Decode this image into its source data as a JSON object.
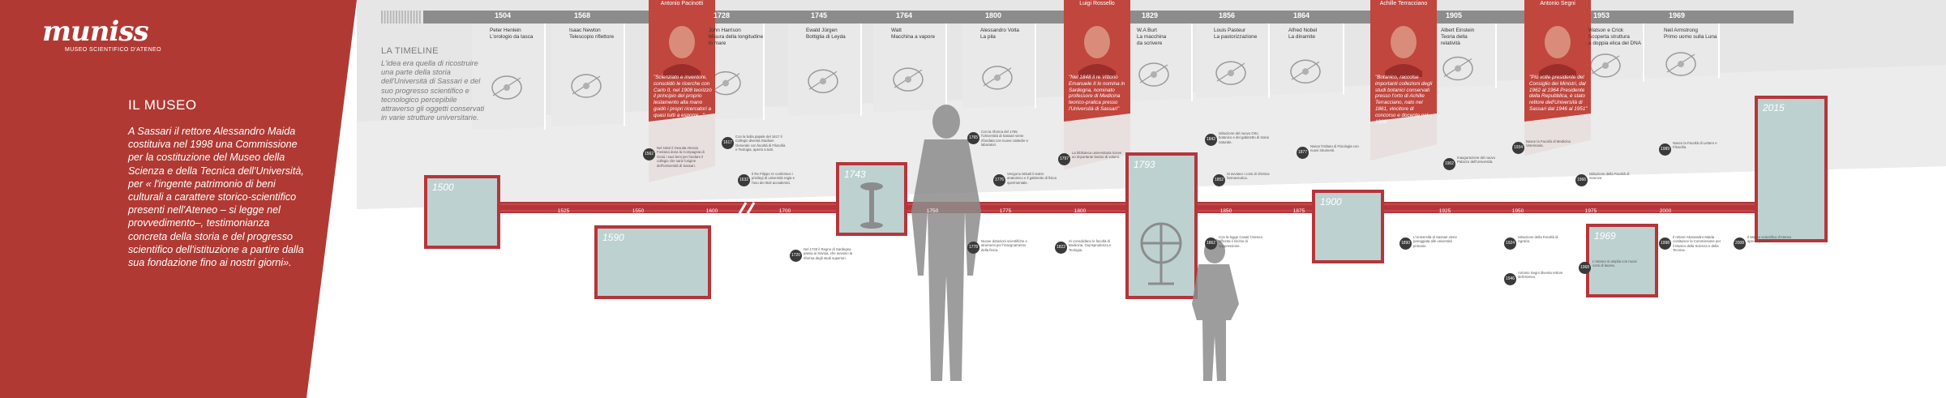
{
  "colors": {
    "brand_red": "#b03a33",
    "timeline_red": "#b6353a",
    "exhibit_fill": "#bdd1d0",
    "grey_panel": "#e4e4e4",
    "header_bar": "#8c8c8c"
  },
  "brand": {
    "name": "muniss",
    "subtitle": "MUSEO SCIENTIFICO D'ATENEO"
  },
  "museo": {
    "title": "IL MUSEO",
    "text": "A Sassari il rettore Alessandro Maida costituiva nel 1998 una Commissione per la costituzione del Museo della Scienza e della Tecnica dell'Università, per « l'ingente patrimonio di beni culturali a carattere storico-scientifico presenti nell'Ateneo – si legge nel provvedimento–, testimonianza concreta della storia e del progresso scientifico dell'istituzione a partire dalla sua fondazione fino ai nostri giorni»."
  },
  "timeline_intro": {
    "title": "LA TIMELINE",
    "text": "L'idea era quella di ricostruire una parte della storia dell'Università di Sassari e del suo progresso scientifico e tecnologico percepibile attraverso gli oggetti conservati in varie strutture universitarie."
  },
  "inventions": [
    {
      "year": "1504",
      "caption": "Peter Henlein\nL'orologio da tasca",
      "icon": "pocket-watch-icon"
    },
    {
      "year": "1568",
      "caption": "Isaac Newton\nTelescopio riflettore",
      "icon": "telescope-icon"
    },
    {
      "year": "1728",
      "caption": "John Harrison\nMisura della longitudine\nin mare",
      "icon": "marine-chronometer-icon"
    },
    {
      "year": "1745",
      "caption": "Ewald Jürgen\nBottiglia di Leyda",
      "icon": "leyden-jar-icon"
    },
    {
      "year": "1764",
      "caption": "Watt\nMacchina a vapore",
      "icon": "steam-engine-icon"
    },
    {
      "year": "1800",
      "caption": "Alessandro Volta\nLa pila",
      "icon": "voltaic-pile-icon"
    },
    {
      "year": "1829",
      "caption": "W.A Burt\nLa macchina\nda scrivere",
      "icon": "typewriter-icon"
    },
    {
      "year": "1856",
      "caption": "Louis Pasteur\nLa pastorizzazione",
      "icon": "petri-dish-icon"
    },
    {
      "year": "1864",
      "caption": "Alfred Nobel\nLa dinamite",
      "icon": "dynamite-icon"
    },
    {
      "year": "1905",
      "caption": "Albert Einstein\nTeoria della\nrelatività",
      "icon": "formula-icon"
    },
    {
      "year": "1953",
      "caption": "Watson e Crick\nScoperta struttura\na doppia elica del DNA",
      "icon": "dna-icon"
    },
    {
      "year": "1969",
      "caption": "Neil Armstrong\nPrimo uomo sulla Luna",
      "icon": "astronaut-icon"
    }
  ],
  "portraits": [
    {
      "name": "Antonio Pacinotti",
      "quote": "\"Scienziato e inventore, consolidò le ricerche con Carlo II, nel 1908 teorizzò il principio del proprio testamento alla mano guidò i propri ricercatori a quasi tutti a esporre...\""
    },
    {
      "name": "Luigi Rossello",
      "quote": "\"Nel 1848 il re Vittorio Emanuele II lo nomina in Sardegna, nominato professore di Medicina teorico-pratica presso l'Università di Sassari\""
    },
    {
      "name": "Achille Terracciano",
      "quote": "\"Botanico, raccolse importanti collezioni degli studi botanici conservati presso l'orto di Achille Terracciano, nato nel 1861, vincitore di concorso e docente nel 1908\""
    },
    {
      "name": "Antonio Segni",
      "quote": "\"Più volte presidente del Consiglio dei Ministri, dal 1962 al 1964 Presidente della Repubblica, è stato rettore dell'Università di Sassari dal 1946 al 1951\""
    }
  ],
  "ticks": [
    "1525",
    "1550",
    "1600",
    "1700",
    "1750",
    "1775",
    "1800",
    "1850",
    "1875",
    "1925",
    "1950",
    "1975",
    "2000"
  ],
  "exhibits": [
    "1500",
    "1590",
    "1743",
    "1793",
    "1900",
    "1969",
    "2015"
  ],
  "milestones": [
    {
      "year": "1562",
      "text": "Nel 1562 il Gesuita Alessio Fontana dona la Compagnia di Gesù i suoi beni per fondare il collegio che sarà l'origine dell'Università di Sassari."
    },
    {
      "year": "1617",
      "text": "Con la bolla papale del 1617 il Collegio diventa Studium Generale con facoltà di Filosofia e Teologia, aperto a tutti."
    },
    {
      "year": "1632",
      "text": "Il Re Filippo IV conferisce i privilegi di università regia e l'uso dei titoli accademici."
    },
    {
      "year": "1720",
      "text": "Nel 1720 il Regno di Sardegna passa ai Savoia, che avviano la riforma degli studi superiori."
    },
    {
      "year": "1765",
      "text": "Con la riforma del 1765 l'Università di Sassari viene rifondata con nuove cattedre e laboratori."
    },
    {
      "year": "1776",
      "text": "Vengono istituiti il teatro anatomico e il gabinetto di fisica sperimentale."
    },
    {
      "year": "1778",
      "text": "Nuove dotazioni scientifiche e strumenti per l'insegnamento della fisica."
    },
    {
      "year": "1797",
      "text": "La biblioteca universitaria riceve un importante lascito di volumi."
    },
    {
      "year": "1822",
      "text": "Si consolidano le facoltà di Medicina, Giurisprudenza e Teologia."
    },
    {
      "year": "1842",
      "text": "Istituzione del nuovo Orto botanico e del gabinetto di storia naturale."
    },
    {
      "year": "1852",
      "text": "Si avviano i corsi di chimica farmaceutica."
    },
    {
      "year": "1862",
      "text": "Con la legge Casati l'Ateneo affronta il rischio di soppressione."
    },
    {
      "year": "1877",
      "text": "Nasce l'Istituto di Fisiologia con nuovi strumenti."
    },
    {
      "year": "1890",
      "text": "L'Università di Sassari viene pareggiata alle università primarie."
    },
    {
      "year": "1902",
      "text": "Inaugurazione del nuovo Palazzo dell'Università."
    },
    {
      "year": "1924",
      "text": "Istituzione della Facoltà di Agraria."
    },
    {
      "year": "1934",
      "text": "Nasce la Facoltà di Medicina Veterinaria."
    },
    {
      "year": "1946",
      "text": "Antonio Segni diventa rettore dell'Ateneo."
    },
    {
      "year": "1966",
      "text": "Istituzione della Facoltà di Scienze."
    },
    {
      "year": "1968",
      "text": "L'Ateneo si amplia con nuovi corsi di laurea."
    },
    {
      "year": "1989",
      "text": "Nasce la Facoltà di Lettere e Filosofia."
    },
    {
      "year": "1998",
      "text": "Il rettore Alessandro Maida costituisce la Commissione per il Museo della Scienza e della Tecnica."
    },
    {
      "year": "2008",
      "text": "Il Museo scientifico d'Ateneo apre al pubblico."
    }
  ]
}
